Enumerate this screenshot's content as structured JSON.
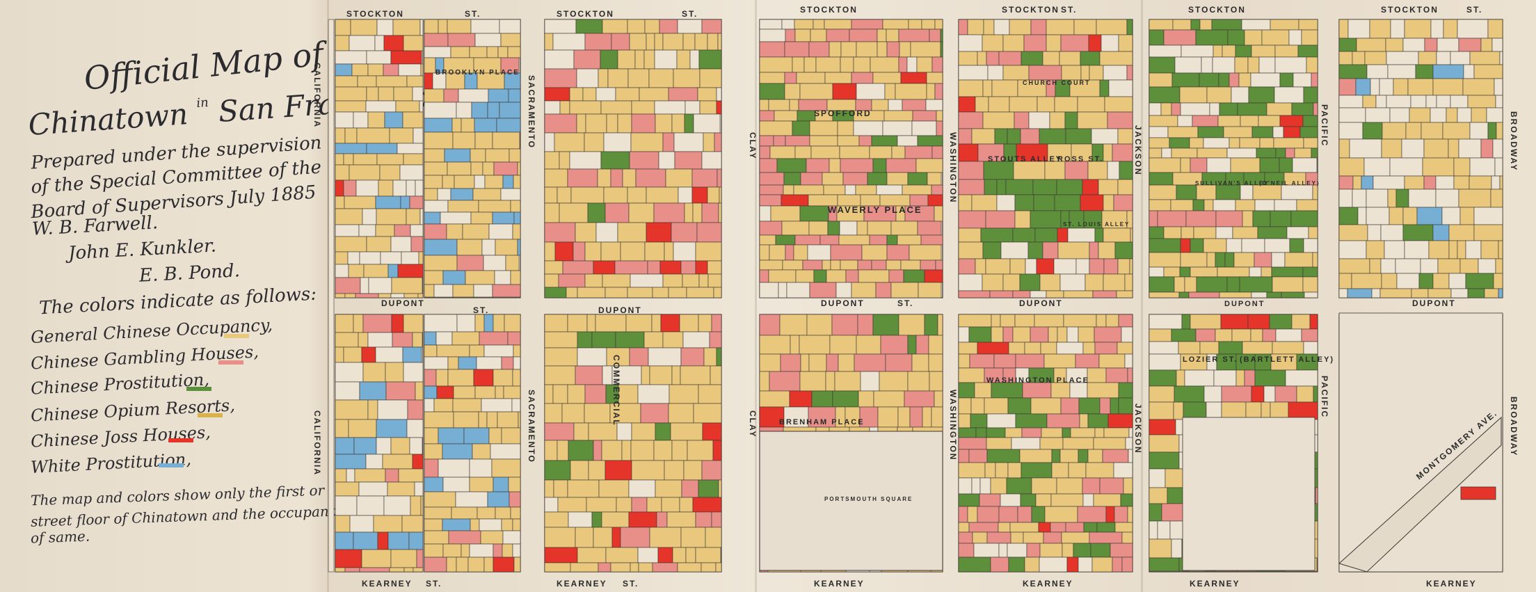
{
  "title": {
    "line1": "Official Map of",
    "line2a": "Chinatown",
    "line2in": "in",
    "line2b": "San Francisco"
  },
  "subtitle": [
    "Prepared under the supervision",
    "of the Special Committee of the",
    "Board of Supervisors July 1885"
  ],
  "signatories": [
    "W. B. Farwell.",
    "John E. Kunkler.",
    "E. B. Pond."
  ],
  "legend": {
    "intro": "The colors indicate as follows:",
    "items": [
      {
        "label": "General Chinese Occupancy,",
        "color": "#e9c77d"
      },
      {
        "label": "Chinese Gambling Houses,",
        "color": "#e88f8a"
      },
      {
        "label": "Chinese Prostitution,",
        "color": "#5e8f3a"
      },
      {
        "label": "Chinese Opium Resorts,",
        "color": "#d8b24a"
      },
      {
        "label": "Chinese Joss Houses,",
        "color": "#e5352a"
      },
      {
        "label": "White Prostitution,",
        "color": "#76aed4"
      }
    ]
  },
  "note": [
    "The map and colors show only the first or",
    "street floor of Chinatown and the occupancy",
    "of same."
  ],
  "streets": {
    "stockton": "STOCKTON",
    "st": "ST.",
    "dupont": "DUPONT",
    "kearney": "KEARNEY",
    "california": "CALIFORNIA",
    "sacramento": "SACRAMENTO",
    "clay": "CLAY",
    "washington": "WASHINGTON",
    "jackson": "JACKSON",
    "pacific": "PACIFIC",
    "broadway": "BROADWAY",
    "commercial": "COMMERCIAL",
    "spofford": "SPOFFORD",
    "waverly": "WAVERLY PLACE",
    "brenham": "BRENHAM PLACE",
    "washington_place": "WASHINGTON PLACE",
    "brooklyn": "BROOKLYN PLACE",
    "stouts": "STOUTS ALLEY",
    "ross": "ROSS ST.",
    "lozier": "LOZIER ST.",
    "bartlett": "(BARTLETT ALLEY)",
    "montgomery": "MONTGOMERY AVE.",
    "church_court": "CHURCH COURT",
    "portsmouth": "PORTSMOUTH SQUARE",
    "st_louis": "ST. LOUIS ALLEY",
    "sullivans": "SULLIVAN'S ALLEY",
    "oneil": "(O'NEIL ALLEY)"
  },
  "colors": {
    "occupancy": "#e9c77d",
    "gambling": "#e88f8a",
    "prostitution": "#5e8f3a",
    "opium": "#d8b24a",
    "joss": "#e5352a",
    "white": "#76aed4",
    "line": "#3a3530",
    "paper": "#ece3d3"
  }
}
